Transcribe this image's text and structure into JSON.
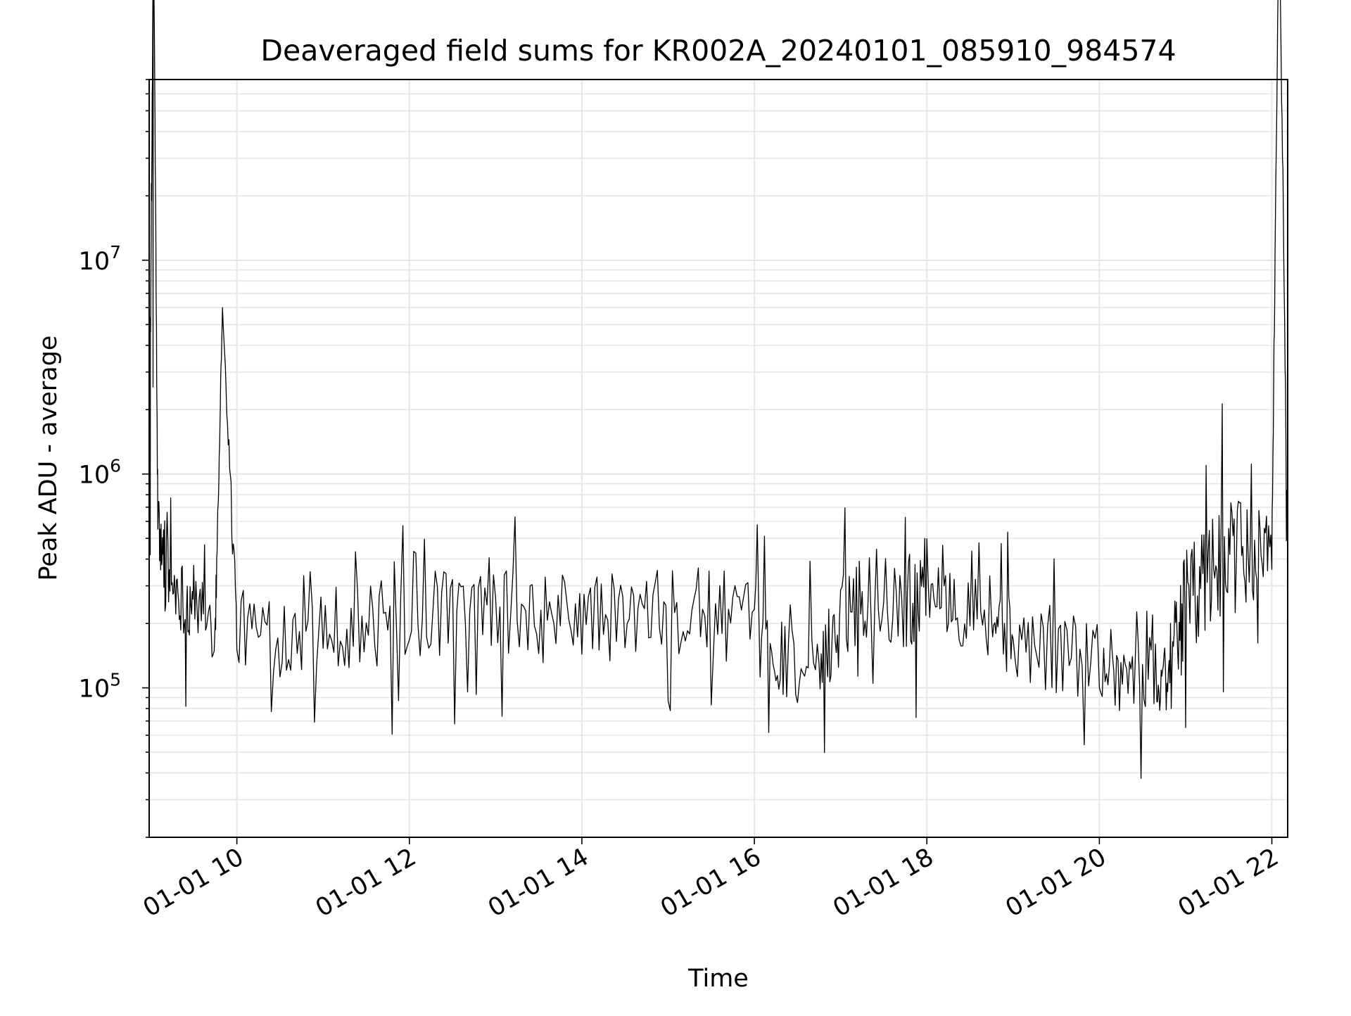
{
  "chart_data": {
    "type": "line",
    "title": "Deaveraged field sums for KR002A_20240101_085910_984574",
    "xlabel": "Time",
    "ylabel": "Peak ADU - average",
    "xlim": [
      "2024-01-01 08:59",
      "2024-01-01 22:11"
    ],
    "xticks": [
      {
        "t": "2024-01-01 10:00",
        "label": "01-01 10"
      },
      {
        "t": "2024-01-01 12:00",
        "label": "01-01 12"
      },
      {
        "t": "2024-01-01 14:00",
        "label": "01-01 14"
      },
      {
        "t": "2024-01-01 16:00",
        "label": "01-01 16"
      },
      {
        "t": "2024-01-01 18:00",
        "label": "01-01 18"
      },
      {
        "t": "2024-01-01 20:00",
        "label": "01-01 20"
      },
      {
        "t": "2024-01-01 22:00",
        "label": "01-01 22"
      }
    ],
    "yscale": "log",
    "ylim": [
      20000,
      70000000
    ],
    "yticks": [
      {
        "value": 100000,
        "base": "10",
        "exp": "5"
      },
      {
        "value": 1000000,
        "base": "10",
        "exp": "6"
      },
      {
        "value": 10000000,
        "base": "10",
        "exp": "7"
      }
    ],
    "grid": true,
    "line_color": "#000000",
    "grid_color": "#e6e6e6",
    "points_per_segment": 20,
    "series": [
      {
        "x": [
          "2024-01-01 08:59",
          "2024-01-01 09:02",
          "2024-01-01 09:05",
          "2024-01-01 09:10",
          "2024-01-01 09:20",
          "2024-01-01 09:30",
          "2024-01-01 09:45",
          "2024-01-01 09:50",
          "2024-01-01 10:00",
          "2024-01-01 10:30",
          "2024-01-01 11:00",
          "2024-01-01 11:30",
          "2024-01-01 12:00",
          "2024-01-01 12:30",
          "2024-01-01 13:00",
          "2024-01-01 13:30",
          "2024-01-01 14:00",
          "2024-01-01 14:30",
          "2024-01-01 15:00",
          "2024-01-01 15:30",
          "2024-01-01 16:00",
          "2024-01-01 16:20",
          "2024-01-01 16:45",
          "2024-01-01 17:00",
          "2024-01-01 17:20",
          "2024-01-01 17:45",
          "2024-01-01 18:00",
          "2024-01-01 18:20",
          "2024-01-01 18:45",
          "2024-01-01 19:00",
          "2024-01-01 19:30",
          "2024-01-01 20:00",
          "2024-01-01 20:20",
          "2024-01-01 20:40",
          "2024-01-01 20:50",
          "2024-01-01 21:00",
          "2024-01-01 21:15",
          "2024-01-01 21:30",
          "2024-01-01 21:45",
          "2024-01-01 22:00",
          "2024-01-01 22:05",
          "2024-01-01 22:11"
        ],
        "y": [
          420000,
          430000000,
          600000,
          350000,
          280000,
          230000,
          200000,
          6000000,
          190000,
          180000,
          200000,
          190000,
          210000,
          230000,
          220000,
          210000,
          220000,
          210000,
          220000,
          230000,
          190000,
          140000,
          110000,
          230000,
          300000,
          240000,
          330000,
          260000,
          220000,
          170000,
          150000,
          140000,
          115000,
          110000,
          130000,
          240000,
          330000,
          400000,
          420000,
          460000,
          470000000,
          440000
        ],
        "lo": [
          150000,
          150000,
          200000,
          110000,
          70000,
          60000,
          60000,
          38000,
          60000,
          55000,
          50000,
          55000,
          60000,
          60000,
          60000,
          60000,
          60000,
          55000,
          55000,
          55000,
          55000,
          50000,
          45000,
          60000,
          70000,
          70000,
          65000,
          60000,
          55000,
          50000,
          40000,
          35000,
          30000,
          35000,
          40000,
          60000,
          70000,
          90000,
          110000,
          150000,
          200000,
          200000
        ],
        "hi": [
          1500000,
          430000000,
          1300000,
          1000000,
          700000,
          560000,
          500000,
          6000000,
          500000,
          550000,
          560000,
          600000,
          650000,
          720000,
          700000,
          680000,
          700000,
          650000,
          700000,
          720000,
          600000,
          450000,
          400000,
          1100000,
          1000000,
          900000,
          950000,
          850000,
          700000,
          500000,
          450000,
          420000,
          330000,
          330000,
          420000,
          1900000,
          2300000,
          2100000,
          1500000,
          900000,
          470000000,
          800000
        ]
      }
    ]
  }
}
